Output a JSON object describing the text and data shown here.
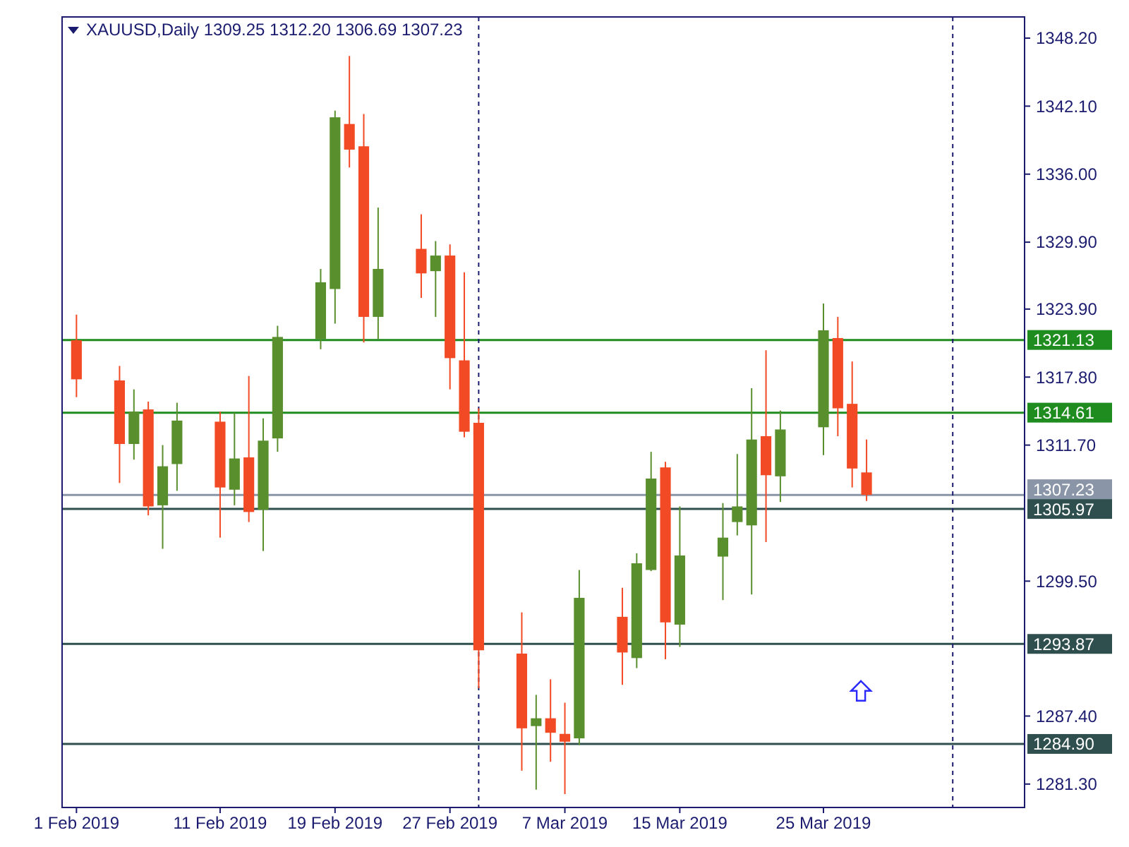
{
  "chart_data": {
    "type": "candlestick",
    "title": "XAUUSD,Daily 1309.25 1312.20 1306.69 1307.23",
    "x": [
      "2019-02-01",
      "2019-02-04",
      "2019-02-05",
      "2019-02-06",
      "2019-02-07",
      "2019-02-08",
      "2019-02-11",
      "2019-02-12",
      "2019-02-13",
      "2019-02-14",
      "2019-02-15",
      "2019-02-18",
      "2019-02-19",
      "2019-02-20",
      "2019-02-21",
      "2019-02-22",
      "2019-02-25",
      "2019-02-26",
      "2019-02-27",
      "2019-02-28",
      "2019-03-01",
      "2019-03-04",
      "2019-03-05",
      "2019-03-06",
      "2019-03-07",
      "2019-03-08",
      "2019-03-11",
      "2019-03-12",
      "2019-03-13",
      "2019-03-14",
      "2019-03-15",
      "2019-03-18",
      "2019-03-19",
      "2019-03-20",
      "2019-03-21",
      "2019-03-22",
      "2019-03-25",
      "2019-03-26",
      "2019-03-27",
      "2019-03-28"
    ],
    "ohlc": [
      [
        1321.1,
        1323.4,
        1316.0,
        1317.6
      ],
      [
        1317.5,
        1318.8,
        1308.3,
        1311.8
      ],
      [
        1311.8,
        1316.7,
        1310.4,
        1314.7
      ],
      [
        1314.9,
        1315.6,
        1305.4,
        1306.2
      ],
      [
        1306.3,
        1311.7,
        1302.4,
        1309.8
      ],
      [
        1310.0,
        1315.5,
        1307.6,
        1313.9
      ],
      [
        1313.8,
        1314.7,
        1303.4,
        1307.9
      ],
      [
        1307.7,
        1314.6,
        1306.3,
        1310.5
      ],
      [
        1310.6,
        1317.9,
        1304.8,
        1305.7
      ],
      [
        1305.9,
        1314.1,
        1302.2,
        1312.1
      ],
      [
        1312.3,
        1322.4,
        1311.1,
        1321.4
      ],
      [
        1321.2,
        1327.5,
        1320.3,
        1326.3
      ],
      [
        1325.7,
        1341.7,
        1322.6,
        1341.1
      ],
      [
        1340.5,
        1346.6,
        1336.6,
        1338.2
      ],
      [
        1338.5,
        1341.4,
        1320.9,
        1323.2
      ],
      [
        1323.2,
        1333.0,
        1321.2,
        1327.5
      ],
      [
        1329.3,
        1332.4,
        1324.9,
        1327.1
      ],
      [
        1327.3,
        1330.0,
        1323.2,
        1328.7
      ],
      [
        1328.7,
        1329.7,
        1316.7,
        1319.5
      ],
      [
        1319.3,
        1327.2,
        1312.4,
        1312.9
      ],
      [
        1313.7,
        1315.0,
        1289.9,
        1293.3
      ],
      [
        1293.0,
        1296.7,
        1282.5,
        1286.3
      ],
      [
        1286.5,
        1289.3,
        1280.8,
        1287.2
      ],
      [
        1287.2,
        1290.7,
        1283.3,
        1285.9
      ],
      [
        1285.8,
        1288.6,
        1280.4,
        1285.1
      ],
      [
        1285.4,
        1300.5,
        1284.8,
        1298.0
      ],
      [
        1296.3,
        1298.9,
        1290.2,
        1293.1
      ],
      [
        1292.6,
        1302.0,
        1291.7,
        1301.1
      ],
      [
        1300.5,
        1311.1,
        1300.4,
        1308.7
      ],
      [
        1309.7,
        1310.2,
        1292.5,
        1295.8
      ],
      [
        1295.6,
        1306.2,
        1293.6,
        1301.8
      ],
      [
        1301.7,
        1306.5,
        1297.8,
        1303.4
      ],
      [
        1304.8,
        1310.9,
        1303.6,
        1306.2
      ],
      [
        1304.5,
        1316.8,
        1298.3,
        1312.2
      ],
      [
        1312.5,
        1320.2,
        1303.0,
        1309.0
      ],
      [
        1308.9,
        1314.8,
        1306.6,
        1313.1
      ],
      [
        1313.3,
        1324.4,
        1310.8,
        1322.0
      ],
      [
        1321.3,
        1323.2,
        1312.5,
        1315.0
      ],
      [
        1315.4,
        1319.2,
        1307.9,
        1309.6
      ],
      [
        1309.25,
        1312.2,
        1306.69,
        1307.23
      ]
    ],
    "colors": [
      "#f24a24",
      "#f24a24",
      "#5a8f2e",
      "#f24a24",
      "#5a8f2e",
      "#5a8f2e",
      "#f24a24",
      "#5a8f2e",
      "#f24a24",
      "#5a8f2e",
      "#5a8f2e",
      "#5a8f2e",
      "#5a8f2e",
      "#f24a24",
      "#f24a24",
      "#5a8f2e",
      "#f24a24",
      "#5a8f2e",
      "#f24a24",
      "#f24a24",
      "#f24a24",
      "#f24a24",
      "#5a8f2e",
      "#f24a24",
      "#f24a24",
      "#5a8f2e",
      "#f24a24",
      "#5a8f2e",
      "#5a8f2e",
      "#f24a24",
      "#5a8f2e",
      "#5a8f2e",
      "#5a8f2e",
      "#5a8f2e",
      "#f24a24",
      "#5a8f2e",
      "#5a8f2e",
      "#f24a24",
      "#f24a24",
      "#f24a24"
    ],
    "xlim": [
      "2019-01-31",
      "2019-04-08"
    ],
    "xticks": [
      {
        "value": "2019-02-01",
        "label": "1 Feb 2019"
      },
      {
        "value": "2019-02-11",
        "label": "11 Feb 2019"
      },
      {
        "value": "2019-02-19",
        "label": "19 Feb 2019"
      },
      {
        "value": "2019-02-27",
        "label": "27 Feb 2019"
      },
      {
        "value": "2019-03-07",
        "label": "7 Mar 2019"
      },
      {
        "value": "2019-03-15",
        "label": "15 Mar 2019"
      },
      {
        "value": "2019-03-25",
        "label": "25 Mar 2019"
      }
    ],
    "ylim": [
      1279.2,
      1350.1
    ],
    "yticks": [
      {
        "value": 1348.2,
        "label": "1348.20"
      },
      {
        "value": 1342.1,
        "label": "1342.10"
      },
      {
        "value": 1336.0,
        "label": "1336.00"
      },
      {
        "value": 1329.9,
        "label": "1329.90"
      },
      {
        "value": 1323.9,
        "label": "1323.90"
      },
      {
        "value": 1317.8,
        "label": "1317.80"
      },
      {
        "value": 1311.7,
        "label": "1311.70"
      },
      {
        "value": 1299.5,
        "label": "1299.50"
      },
      {
        "value": 1287.4,
        "label": "1287.40"
      },
      {
        "value": 1281.3,
        "label": "1281.30"
      }
    ],
    "ref_lines": [
      {
        "axis": "y",
        "value": 1321.13,
        "label": "1321.13",
        "color": "#1e8c1e"
      },
      {
        "axis": "y",
        "value": 1314.61,
        "label": "1314.61",
        "color": "#1e8c1e"
      },
      {
        "axis": "y",
        "value": 1307.23,
        "label": "1307.23",
        "color": "#8a96a8"
      },
      {
        "axis": "y",
        "value": 1305.97,
        "label": "1305.97",
        "color": "#2f4f4f"
      },
      {
        "axis": "y",
        "value": 1293.87,
        "label": "1293.87",
        "color": "#2f4f4f"
      },
      {
        "axis": "y",
        "value": 1284.9,
        "label": "1284.90",
        "color": "#2f4f4f"
      },
      {
        "axis": "x",
        "value": "2019-03-01",
        "color": "#1a1a6e",
        "line_style": "dashed"
      },
      {
        "axis": "x",
        "value": "2019-04-03",
        "color": "#1a1a6e",
        "line_style": "dashed"
      }
    ],
    "grid": false
  }
}
